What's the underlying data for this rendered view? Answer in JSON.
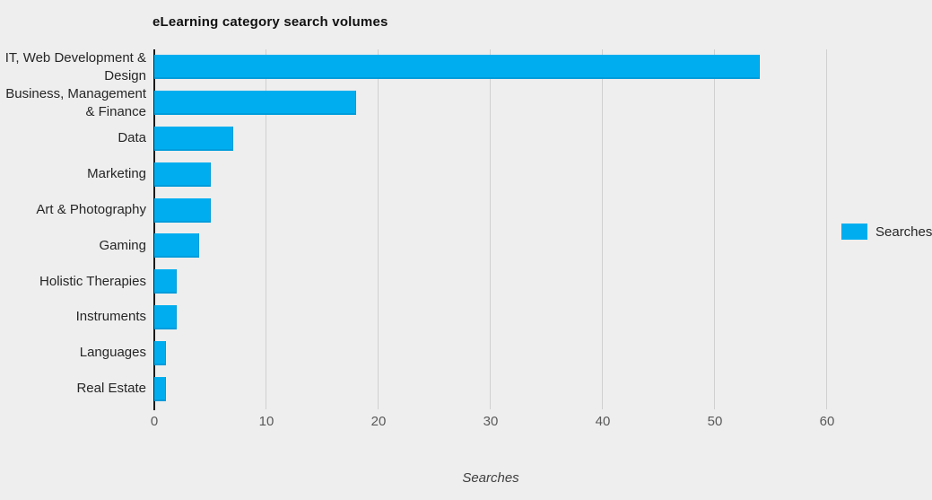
{
  "title": "eLearning category search volumes",
  "legend": {
    "label": "Searches",
    "swatch_color": "#00AEEF"
  },
  "axis": {
    "x_title": "Searches",
    "ticks": [
      0,
      10,
      20,
      30,
      40,
      50,
      60
    ]
  },
  "colors": {
    "bar": "#00AEEF",
    "background": "#eeeeee",
    "gridline": "#d0d0d0",
    "axis_line": "#1a1a1a"
  },
  "chart_data": {
    "type": "bar",
    "orientation": "horizontal",
    "title": "eLearning category search volumes",
    "categories": [
      "IT, Web Development & Design",
      "Business, Management & Finance",
      "Data",
      "Marketing",
      "Art & Photography",
      "Gaming",
      "Holistic Therapies",
      "Instruments",
      "Languages",
      "Real Estate"
    ],
    "series": [
      {
        "name": "Searches",
        "values": [
          54,
          18,
          7,
          5,
          5,
          4,
          2,
          2,
          1,
          1
        ]
      }
    ],
    "xlabel": "Searches",
    "ylabel": "",
    "xlim": [
      0,
      62
    ],
    "grid": true,
    "legend_position": "right",
    "bar_color": "#00AEEF"
  }
}
